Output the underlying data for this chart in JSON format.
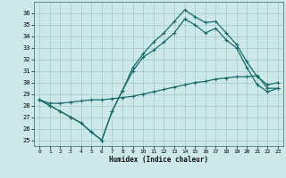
{
  "xlabel": "Humidex (Indice chaleur)",
  "bg_color": "#cce8e8",
  "grid_color": "#aacccc",
  "line_color": "#1a6b6b",
  "x_ticks": [
    0,
    1,
    2,
    3,
    4,
    5,
    6,
    7,
    8,
    9,
    10,
    11,
    12,
    13,
    14,
    15,
    16,
    17,
    18,
    19,
    20,
    21,
    22,
    23
  ],
  "y_ticks": [
    25,
    26,
    27,
    28,
    29,
    30,
    31,
    32,
    33,
    34,
    35,
    36
  ],
  "ylim": [
    24.5,
    37.0
  ],
  "xlim": [
    -0.5,
    23.5
  ],
  "line1_y": [
    28.5,
    28.0,
    27.5,
    27.0,
    26.5,
    25.7,
    25.0,
    27.5,
    29.3,
    31.3,
    32.5,
    33.5,
    34.3,
    35.3,
    36.3,
    35.7,
    35.2,
    35.3,
    34.3,
    33.3,
    31.8,
    30.5,
    29.8,
    30.0
  ],
  "line2_y": [
    28.5,
    28.0,
    27.5,
    27.0,
    26.5,
    25.7,
    25.0,
    27.5,
    29.3,
    31.0,
    32.2,
    32.8,
    33.5,
    34.3,
    35.5,
    35.0,
    34.3,
    34.7,
    33.7,
    33.0,
    31.3,
    29.8,
    29.2,
    29.5
  ],
  "line3_y": [
    28.5,
    28.2,
    28.2,
    28.3,
    28.4,
    28.5,
    28.5,
    28.6,
    28.7,
    28.8,
    29.0,
    29.2,
    29.4,
    29.6,
    29.8,
    30.0,
    30.1,
    30.3,
    30.4,
    30.5,
    30.5,
    30.6,
    29.5,
    29.5
  ]
}
